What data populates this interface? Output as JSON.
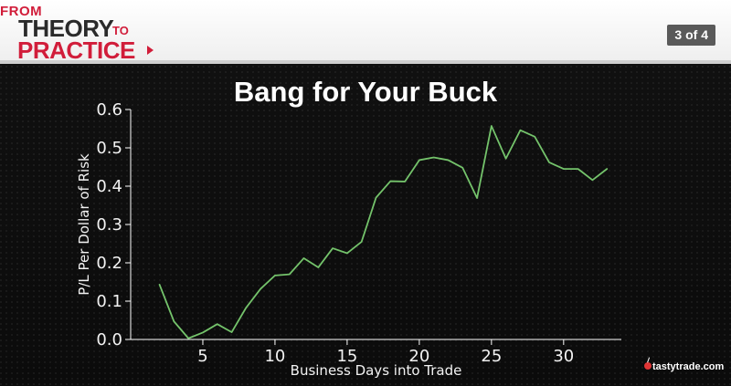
{
  "header": {
    "logo_from": "FROM",
    "logo_theory": "THEORY",
    "logo_to": "TO",
    "logo_practice": "PRACTICE",
    "page_indicator": "3 of 4"
  },
  "footer": {
    "brand": "tastytrade.com"
  },
  "colors": {
    "line": "#74c36b",
    "axis": "#ffffff",
    "title": "#ffffff"
  },
  "chart_data": {
    "type": "line",
    "title": "Bang for Your Buck",
    "xlabel": "Business Days into Trade",
    "ylabel": "P/L Per Dollar of Risk",
    "xlim": [
      0,
      34
    ],
    "ylim": [
      0,
      0.6
    ],
    "xticks": [
      5,
      10,
      15,
      20,
      25,
      30
    ],
    "yticks": [
      0.0,
      0.1,
      0.2,
      0.3,
      0.4,
      0.5,
      0.6
    ],
    "x": [
      2,
      3,
      4,
      5,
      6,
      7,
      8,
      9,
      10,
      11,
      12,
      13,
      14,
      15,
      16,
      17,
      18,
      19,
      20,
      21,
      22,
      23,
      24,
      25,
      26,
      27,
      28,
      29,
      30,
      31,
      32,
      33
    ],
    "series": [
      {
        "values": [
          0.143,
          0.047,
          0.003,
          0.018,
          0.04,
          0.019,
          0.083,
          0.132,
          0.167,
          0.17,
          0.212,
          0.188,
          0.238,
          0.225,
          0.255,
          0.37,
          0.413,
          0.412,
          0.468,
          0.475,
          0.468,
          0.448,
          0.369,
          0.557,
          0.472,
          0.546,
          0.529,
          0.462,
          0.445,
          0.445,
          0.416,
          0.445
        ]
      }
    ],
    "grid": false,
    "legend": "none"
  }
}
